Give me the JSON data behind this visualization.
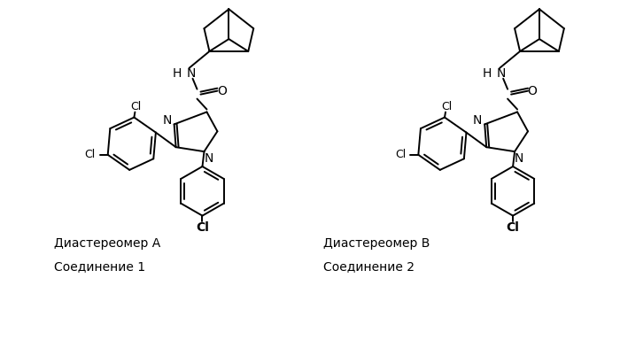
{
  "background_color": "#ffffff",
  "text_color": "#000000",
  "label_A": "Диастереомер А",
  "label_B": "Диастереомер В",
  "compound_1": "Соединение 1",
  "compound_2": "Соединение 2",
  "fig_width": 7.0,
  "fig_height": 3.84,
  "dpi": 100
}
